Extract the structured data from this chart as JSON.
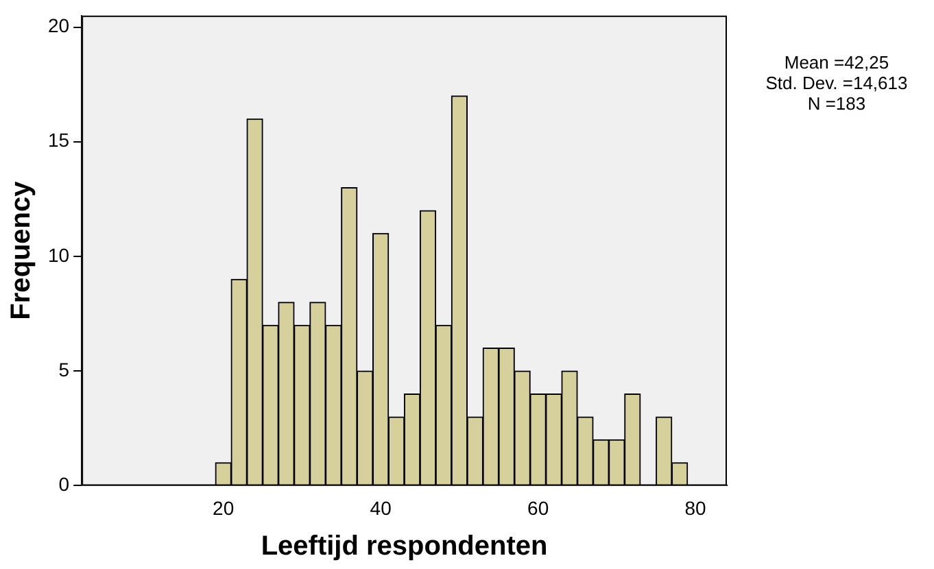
{
  "chart_data": {
    "type": "histogram",
    "xlabel": "Leeftijd respondenten",
    "ylabel": "Frequency",
    "bins": [
      19,
      21,
      23,
      25,
      27,
      29,
      31,
      33,
      35,
      37,
      39,
      41,
      43,
      45,
      47,
      49,
      51,
      53,
      55,
      57,
      59,
      61,
      63,
      65,
      67,
      69,
      71,
      73,
      75,
      77,
      79
    ],
    "values": [
      1,
      9,
      16,
      7,
      8,
      7,
      8,
      7,
      13,
      5,
      11,
      3,
      4,
      12,
      7,
      17,
      3,
      6,
      6,
      5,
      4,
      4,
      5,
      3,
      2,
      2,
      4,
      0,
      3,
      1
    ],
    "color": "#d6d09c",
    "xlim": [
      2,
      84
    ],
    "xticks": [
      20,
      40,
      60,
      80
    ],
    "ylim": [
      0,
      20.5
    ],
    "yticks": [
      0,
      5,
      10,
      15,
      20
    ],
    "grid": false,
    "legend": false,
    "annotations": [
      "Mean =42,25",
      "Std. Dev. =14,613",
      "N =183"
    ]
  }
}
